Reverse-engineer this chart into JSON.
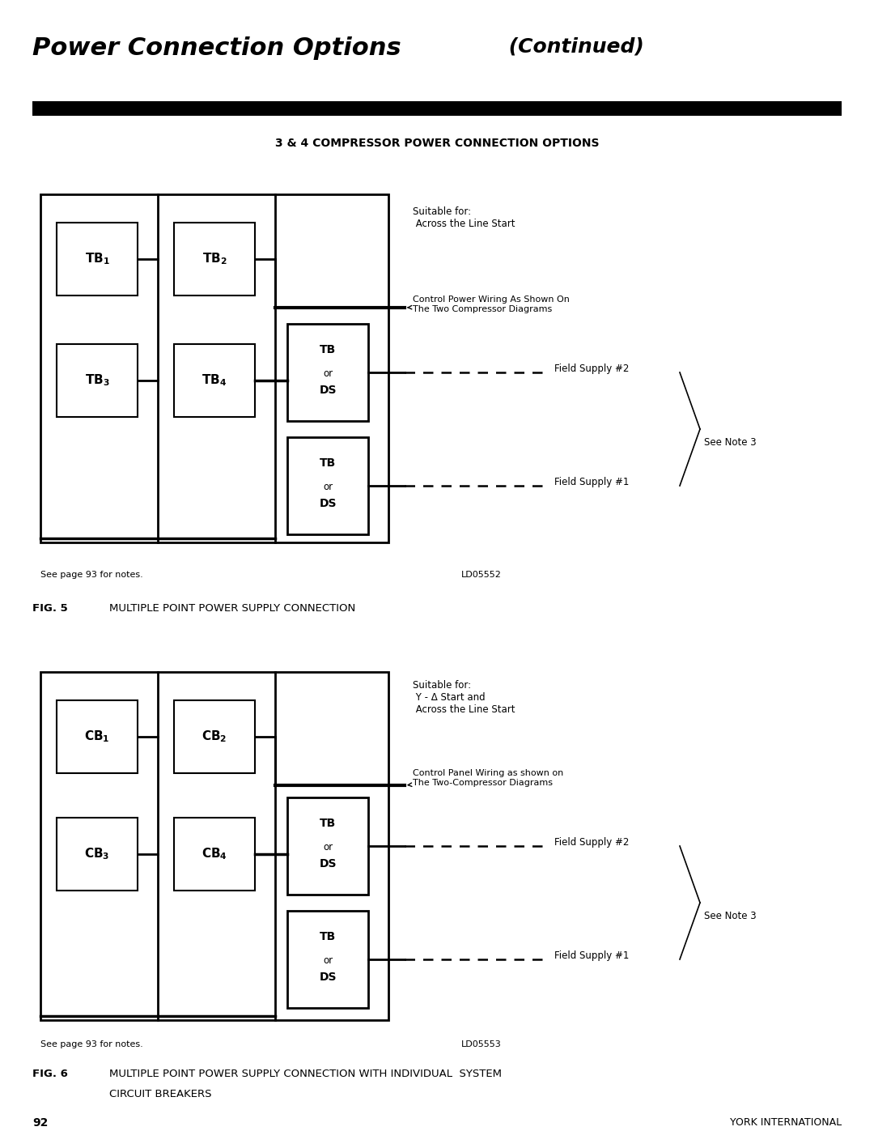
{
  "title_italic": "Power Connection Options",
  "title_continued": " (Continued)",
  "subtitle": "3 & 4 COMPRESSOR POWER CONNECTION OPTIONS",
  "fig5_bold": "FIG. 5",
  "fig5_text": "   MULTIPLE POINT POWER SUPPLY CONNECTION",
  "fig6_bold": "FIG. 6",
  "fig6_text": "   MULTIPLE POINT POWER SUPPLY CONNECTION WITH INDIVIDUAL  SYSTEM\n   CIRCUIT BREAKERS",
  "page_num": "92",
  "page_company": "YORK INTERNATIONAL",
  "d1_suitable": "Suitable for:\n Across the Line Start",
  "d1_control": "Control Power Wiring As Shown On\nThe Two Compressor Diagrams",
  "d1_field2": "Field Supply #2",
  "d1_field1": "Field Supply #1",
  "d1_note": "See Note 3",
  "d1_footnote": "See page 93 for notes.",
  "d1_ld": "LD05552",
  "d2_suitable": "Suitable for:\n Y - Δ Start and\n Across the Line Start",
  "d2_control": "Control Panel Wiring as shown on\nThe Two-Compressor Diagrams",
  "d2_field2": "Field Supply #2",
  "d2_field1": "Field Supply #1",
  "d2_note": "See Note 3",
  "d2_footnote": "See page 93 for notes.",
  "d2_ld": "LD05553"
}
